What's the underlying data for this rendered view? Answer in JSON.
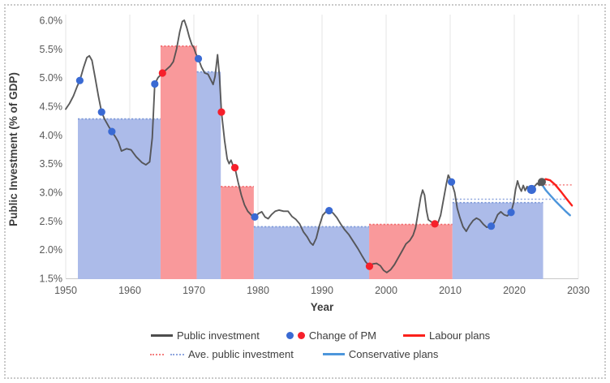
{
  "legend": {
    "public_investment": "Public investment",
    "change_of_pm": "Change of PM",
    "labour_plans": "Labour plans",
    "ave_public_investment": "Ave. public investment",
    "conservative_plans": "Conservative plans"
  },
  "colors": {
    "conservative_fill": "#ACBBE9",
    "conservative_edge": "#7D99D8",
    "labour_fill": "#F9999B",
    "labour_edge": "#F1696C",
    "investment_line": "#4D4D4D",
    "conservative_dot": "#3A6AD3",
    "labour_dot": "#F6202B",
    "labour_plans_line": "#FB201B",
    "conservative_plans_line": "#4D96DB",
    "avg_red_dotted": "#F47F7F",
    "avg_blue_dotted": "#8FA6DE",
    "end_marker": "#595959",
    "grid": "#E4E4E4",
    "axis": "#C9C9C9",
    "tick_text": "#595959",
    "title_text": "#3D3D3D"
  },
  "chart_data": {
    "type": "line",
    "title": "",
    "x_label": "Year",
    "y_label": "Public Investment (% of GDP)",
    "x_ticks": [
      "1950",
      "1960",
      "1970",
      "1980",
      "1990",
      "2000",
      "2010",
      "2020",
      "2030"
    ],
    "y_ticks": [
      "1.5%",
      "2.0%",
      "2.5%",
      "3.0%",
      "3.5%",
      "4.0%",
      "4.5%",
      "5.0%",
      "5.5%",
      "6.0%"
    ],
    "x_range": [
      1950,
      2030
    ],
    "y_range": [
      1.5,
      6.0
    ],
    "grid": "vertical-only",
    "legend_position": "bottom",
    "government_bars": [
      {
        "party": "Conservative",
        "start": 1951.9,
        "end": 1964.8,
        "avg": 4.28
      },
      {
        "party": "Labour",
        "start": 1964.8,
        "end": 1970.45,
        "avg": 5.55
      },
      {
        "party": "Conservative",
        "start": 1970.45,
        "end": 1974.2,
        "avg": 5.1
      },
      {
        "party": "Labour",
        "start": 1974.2,
        "end": 1979.35,
        "avg": 3.1
      },
      {
        "party": "Conservative",
        "start": 1979.35,
        "end": 1997.35,
        "avg": 2.4
      },
      {
        "party": "Labour",
        "start": 1997.35,
        "end": 2010.35,
        "avg": 2.44
      },
      {
        "party": "Conservative",
        "start": 2010.35,
        "end": 2024.5,
        "avg": 2.82
      }
    ],
    "public_investment": [
      [
        1950.0,
        4.45
      ],
      [
        1950.6,
        4.55
      ],
      [
        1951.2,
        4.68
      ],
      [
        1951.8,
        4.85
      ],
      [
        1952.2,
        4.95
      ],
      [
        1952.8,
        5.18
      ],
      [
        1953.3,
        5.35
      ],
      [
        1953.7,
        5.38
      ],
      [
        1954.1,
        5.3
      ],
      [
        1954.6,
        5.0
      ],
      [
        1955.1,
        4.68
      ],
      [
        1955.6,
        4.4
      ],
      [
        1956.1,
        4.27
      ],
      [
        1956.7,
        4.15
      ],
      [
        1957.2,
        4.06
      ],
      [
        1957.8,
        3.96
      ],
      [
        1958.2,
        3.88
      ],
      [
        1958.7,
        3.72
      ],
      [
        1959.5,
        3.76
      ],
      [
        1960.2,
        3.74
      ],
      [
        1961.0,
        3.62
      ],
      [
        1961.9,
        3.52
      ],
      [
        1962.5,
        3.48
      ],
      [
        1963.1,
        3.53
      ],
      [
        1963.5,
        3.95
      ],
      [
        1963.9,
        4.89
      ],
      [
        1964.4,
        5.0
      ],
      [
        1965.1,
        5.08
      ],
      [
        1965.7,
        5.14
      ],
      [
        1966.3,
        5.2
      ],
      [
        1966.8,
        5.28
      ],
      [
        1967.3,
        5.5
      ],
      [
        1967.8,
        5.8
      ],
      [
        1968.2,
        5.98
      ],
      [
        1968.5,
        6.0
      ],
      [
        1968.9,
        5.87
      ],
      [
        1969.3,
        5.7
      ],
      [
        1969.7,
        5.57
      ],
      [
        1970.0,
        5.52
      ],
      [
        1970.3,
        5.42
      ],
      [
        1970.7,
        5.33
      ],
      [
        1971.2,
        5.18
      ],
      [
        1971.7,
        5.08
      ],
      [
        1972.2,
        5.06
      ],
      [
        1972.7,
        4.95
      ],
      [
        1973.0,
        4.88
      ],
      [
        1973.3,
        5.02
      ],
      [
        1973.7,
        5.4
      ],
      [
        1974.0,
        5.02
      ],
      [
        1974.3,
        4.4
      ],
      [
        1974.8,
        3.9
      ],
      [
        1975.2,
        3.58
      ],
      [
        1975.5,
        3.5
      ],
      [
        1975.8,
        3.56
      ],
      [
        1976.1,
        3.47
      ],
      [
        1976.4,
        3.43
      ],
      [
        1976.9,
        3.18
      ],
      [
        1977.4,
        2.95
      ],
      [
        1977.9,
        2.78
      ],
      [
        1978.4,
        2.67
      ],
      [
        1979.0,
        2.6
      ],
      [
        1979.5,
        2.57
      ],
      [
        1980.1,
        2.63
      ],
      [
        1980.6,
        2.66
      ],
      [
        1981.1,
        2.57
      ],
      [
        1981.6,
        2.54
      ],
      [
        1982.1,
        2.61
      ],
      [
        1982.7,
        2.67
      ],
      [
        1983.3,
        2.69
      ],
      [
        1984.0,
        2.67
      ],
      [
        1984.7,
        2.67
      ],
      [
        1985.3,
        2.58
      ],
      [
        1985.9,
        2.53
      ],
      [
        1986.5,
        2.45
      ],
      [
        1987.1,
        2.31
      ],
      [
        1987.7,
        2.22
      ],
      [
        1988.2,
        2.12
      ],
      [
        1988.6,
        2.08
      ],
      [
        1989.1,
        2.2
      ],
      [
        1989.6,
        2.42
      ],
      [
        1990.1,
        2.6
      ],
      [
        1990.6,
        2.66
      ],
      [
        1991.1,
        2.68
      ],
      [
        1991.7,
        2.64
      ],
      [
        1992.3,
        2.56
      ],
      [
        1992.9,
        2.45
      ],
      [
        1993.5,
        2.35
      ],
      [
        1994.2,
        2.26
      ],
      [
        1994.9,
        2.14
      ],
      [
        1995.6,
        2.02
      ],
      [
        1996.2,
        1.9
      ],
      [
        1996.8,
        1.79
      ],
      [
        1997.4,
        1.71
      ],
      [
        1997.9,
        1.75
      ],
      [
        1998.5,
        1.76
      ],
      [
        1999.1,
        1.72
      ],
      [
        1999.6,
        1.64
      ],
      [
        2000.1,
        1.6
      ],
      [
        2000.7,
        1.65
      ],
      [
        2001.3,
        1.74
      ],
      [
        2001.9,
        1.86
      ],
      [
        2002.5,
        1.98
      ],
      [
        2003.1,
        2.1
      ],
      [
        2003.7,
        2.16
      ],
      [
        2004.2,
        2.25
      ],
      [
        2004.6,
        2.38
      ],
      [
        2005.0,
        2.65
      ],
      [
        2005.4,
        2.92
      ],
      [
        2005.7,
        3.04
      ],
      [
        2006.0,
        2.95
      ],
      [
        2006.3,
        2.68
      ],
      [
        2006.6,
        2.52
      ],
      [
        2007.1,
        2.48
      ],
      [
        2007.6,
        2.45
      ],
      [
        2008.1,
        2.47
      ],
      [
        2008.5,
        2.6
      ],
      [
        2009.0,
        2.9
      ],
      [
        2009.4,
        3.15
      ],
      [
        2009.7,
        3.3
      ],
      [
        2010.2,
        3.18
      ],
      [
        2010.7,
        3.0
      ],
      [
        2011.1,
        2.72
      ],
      [
        2011.5,
        2.56
      ],
      [
        2012.0,
        2.4
      ],
      [
        2012.5,
        2.32
      ],
      [
        2013.0,
        2.42
      ],
      [
        2013.6,
        2.51
      ],
      [
        2014.1,
        2.55
      ],
      [
        2014.6,
        2.52
      ],
      [
        2015.2,
        2.44
      ],
      [
        2015.7,
        2.39
      ],
      [
        2016.4,
        2.41
      ],
      [
        2016.9,
        2.48
      ],
      [
        2017.4,
        2.61
      ],
      [
        2017.9,
        2.66
      ],
      [
        2018.4,
        2.61
      ],
      [
        2018.9,
        2.59
      ],
      [
        2019.5,
        2.65
      ],
      [
        2019.9,
        2.82
      ],
      [
        2020.2,
        3.05
      ],
      [
        2020.5,
        3.2
      ],
      [
        2020.8,
        3.09
      ],
      [
        2021.1,
        3.02
      ],
      [
        2021.4,
        3.12
      ],
      [
        2021.7,
        3.03
      ],
      [
        2022.0,
        3.1
      ],
      [
        2022.3,
        3.0
      ],
      [
        2022.7,
        3.05
      ],
      [
        2023.2,
        3.11
      ],
      [
        2023.6,
        3.16
      ],
      [
        2023.9,
        3.12
      ],
      [
        2024.3,
        3.18
      ]
    ],
    "pm_changes": [
      {
        "year": 1952.2,
        "value": 4.95,
        "party": "Conservative"
      },
      {
        "year": 1955.6,
        "value": 4.4,
        "party": "Conservative"
      },
      {
        "year": 1957.2,
        "value": 4.06,
        "party": "Conservative"
      },
      {
        "year": 1963.9,
        "value": 4.89,
        "party": "Conservative"
      },
      {
        "year": 1965.1,
        "value": 5.08,
        "party": "Labour"
      },
      {
        "year": 1970.7,
        "value": 5.33,
        "party": "Conservative"
      },
      {
        "year": 1974.3,
        "value": 4.4,
        "party": "Labour"
      },
      {
        "year": 1976.4,
        "value": 3.43,
        "party": "Labour"
      },
      {
        "year": 1979.5,
        "value": 2.57,
        "party": "Conservative"
      },
      {
        "year": 1991.1,
        "value": 2.68,
        "party": "Conservative"
      },
      {
        "year": 1997.4,
        "value": 1.71,
        "party": "Labour"
      },
      {
        "year": 2007.6,
        "value": 2.45,
        "party": "Labour"
      },
      {
        "year": 2010.2,
        "value": 3.18,
        "party": "Conservative"
      },
      {
        "year": 2016.4,
        "value": 2.41,
        "party": "Conservative"
      },
      {
        "year": 2019.5,
        "value": 2.65,
        "party": "Conservative"
      },
      {
        "year": 2022.7,
        "value": 3.05,
        "party": "Conservative",
        "size": "large"
      }
    ],
    "end_marker": {
      "year": 2024.3,
      "value": 3.18
    },
    "labour_plans": [
      [
        2024.3,
        3.18
      ],
      [
        2024.9,
        3.23
      ],
      [
        2025.6,
        3.21
      ],
      [
        2026.4,
        3.13
      ],
      [
        2027.3,
        3.01
      ],
      [
        2028.2,
        2.88
      ],
      [
        2029.0,
        2.77
      ]
    ],
    "conservative_plans": [
      [
        2024.3,
        3.14
      ],
      [
        2024.9,
        3.04
      ],
      [
        2025.6,
        2.95
      ],
      [
        2026.4,
        2.85
      ],
      [
        2027.2,
        2.76
      ],
      [
        2028.0,
        2.67
      ],
      [
        2028.7,
        2.6
      ]
    ],
    "average_projections": [
      {
        "party": "Labour",
        "value": 3.13,
        "start": 2024.8,
        "end": 2029.2
      },
      {
        "party": "Conservative",
        "value": 2.88,
        "start": 2010.4,
        "end": 2028.4
      }
    ]
  }
}
